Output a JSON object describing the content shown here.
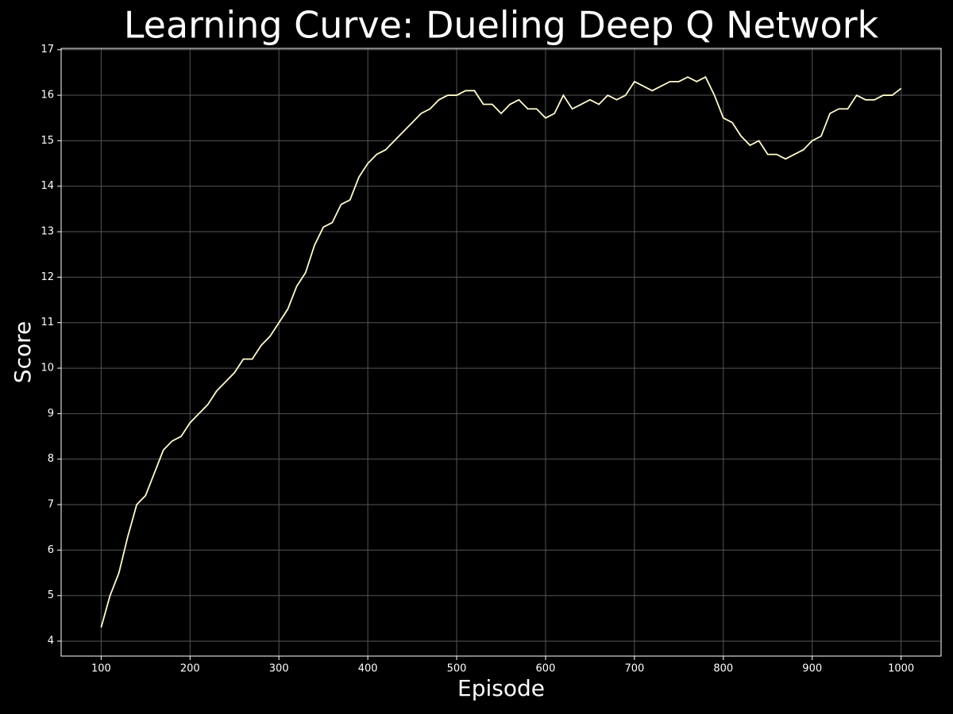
{
  "chart_data": {
    "type": "line",
    "title": "Learning Curve: Dueling Deep Q Network",
    "xlabel": "Episode",
    "ylabel": "Score",
    "x": [
      100,
      110,
      120,
      130,
      140,
      150,
      160,
      170,
      180,
      190,
      200,
      210,
      220,
      230,
      240,
      250,
      260,
      270,
      280,
      290,
      300,
      310,
      320,
      330,
      340,
      350,
      360,
      370,
      380,
      390,
      400,
      410,
      420,
      430,
      440,
      450,
      460,
      470,
      480,
      490,
      500,
      510,
      520,
      530,
      540,
      550,
      560,
      570,
      580,
      590,
      600,
      610,
      620,
      630,
      640,
      650,
      660,
      670,
      680,
      690,
      700,
      710,
      720,
      730,
      740,
      750,
      760,
      770,
      780,
      790,
      800,
      810,
      820,
      830,
      840,
      850,
      860,
      870,
      880,
      890,
      900,
      910,
      920,
      930,
      940,
      950,
      960,
      970,
      980,
      990,
      1000
    ],
    "series": [
      {
        "name": "Score",
        "color": "#fffacd",
        "values": [
          4.3,
          5.0,
          5.5,
          6.3,
          7.0,
          7.2,
          7.7,
          8.2,
          8.4,
          8.5,
          8.8,
          9.0,
          9.2,
          9.5,
          9.7,
          9.9,
          10.2,
          10.2,
          10.5,
          10.7,
          11.0,
          11.3,
          11.8,
          12.1,
          12.7,
          13.1,
          13.2,
          13.6,
          13.7,
          14.2,
          14.5,
          14.7,
          14.8,
          15.0,
          15.2,
          15.4,
          15.6,
          15.7,
          15.9,
          16.0,
          16.0,
          16.1,
          16.1,
          15.8,
          15.8,
          15.6,
          15.8,
          15.9,
          15.7,
          15.7,
          15.5,
          15.6,
          16.0,
          15.7,
          15.8,
          15.9,
          15.8,
          16.0,
          15.9,
          16.0,
          16.3,
          16.2,
          16.1,
          16.2,
          16.3,
          16.3,
          16.4,
          16.3,
          16.4,
          16.0,
          15.5,
          15.4,
          15.1,
          14.9,
          15.0,
          14.7,
          14.7,
          14.6,
          14.7,
          14.8,
          15.0,
          15.1,
          15.6,
          15.7,
          15.7,
          16.0,
          15.9,
          15.9,
          16.0,
          16.0,
          16.15
        ]
      }
    ],
    "xlim": [
      55,
      1045
    ],
    "xticks": [
      100,
      200,
      300,
      400,
      500,
      600,
      700,
      800,
      900,
      1000
    ],
    "ylim": [
      3.67,
      17.03
    ],
    "yticks": [
      4,
      5,
      6,
      7,
      8,
      9,
      10,
      11,
      12,
      13,
      14,
      15,
      16,
      17
    ],
    "grid": true
  }
}
